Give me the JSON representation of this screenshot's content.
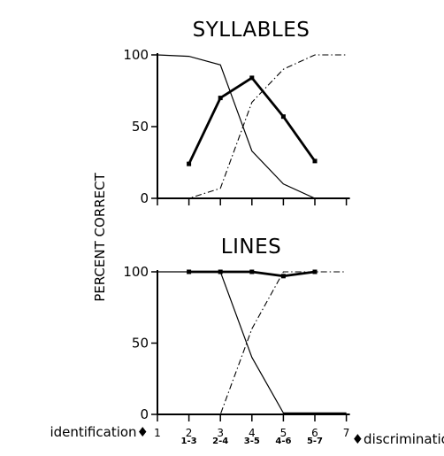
{
  "chart_data": {
    "type": "line",
    "ylabel": "PERCENT CORRECT",
    "x_row_labels": {
      "identification": "identification",
      "discrimination": "discrimination",
      "arrow": "♦"
    },
    "x_identification_ticks": [
      "1",
      "2",
      "3",
      "4",
      "5",
      "6",
      "7"
    ],
    "x_discrimination_ticks": [
      "1-3",
      "2-4",
      "3-5",
      "4-6",
      "5-7"
    ],
    "panels": [
      {
        "title": "SYLLABLES",
        "ylim": [
          0,
          100
        ],
        "yticks": [
          "0",
          "50",
          "100"
        ],
        "series": [
          {
            "style": "thin-solid",
            "x": [
              1,
              2,
              3,
              4,
              5,
              6,
              7
            ],
            "values": [
              100,
              99,
              93,
              33,
              10,
              0,
              0
            ]
          },
          {
            "style": "dash-dot",
            "x": [
              1,
              2,
              3,
              4,
              5,
              6,
              7
            ],
            "values": [
              0,
              0,
              7,
              67,
              90,
              100,
              100
            ]
          },
          {
            "style": "thick-solid-markers",
            "x": [
              2,
              3,
              4,
              5,
              6
            ],
            "values": [
              24,
              70,
              84,
              57,
              26
            ]
          }
        ]
      },
      {
        "title": "LINES",
        "ylim": [
          0,
          100
        ],
        "yticks": [
          "0",
          "50",
          "100"
        ],
        "series": [
          {
            "style": "thin-solid",
            "x": [
              1,
              2,
              3,
              4,
              5,
              6,
              7
            ],
            "values": [
              100,
              100,
              100,
              40,
              1,
              1,
              1
            ]
          },
          {
            "style": "dash-dot",
            "x": [
              1,
              2,
              3,
              4,
              5,
              6,
              7
            ],
            "values": [
              0,
              0,
              0,
              60,
              100,
              100,
              100
            ]
          },
          {
            "style": "thick-solid-markers",
            "x": [
              2,
              3,
              4,
              5,
              6
            ],
            "values": [
              100,
              100,
              100,
              97,
              100
            ]
          }
        ]
      }
    ]
  }
}
